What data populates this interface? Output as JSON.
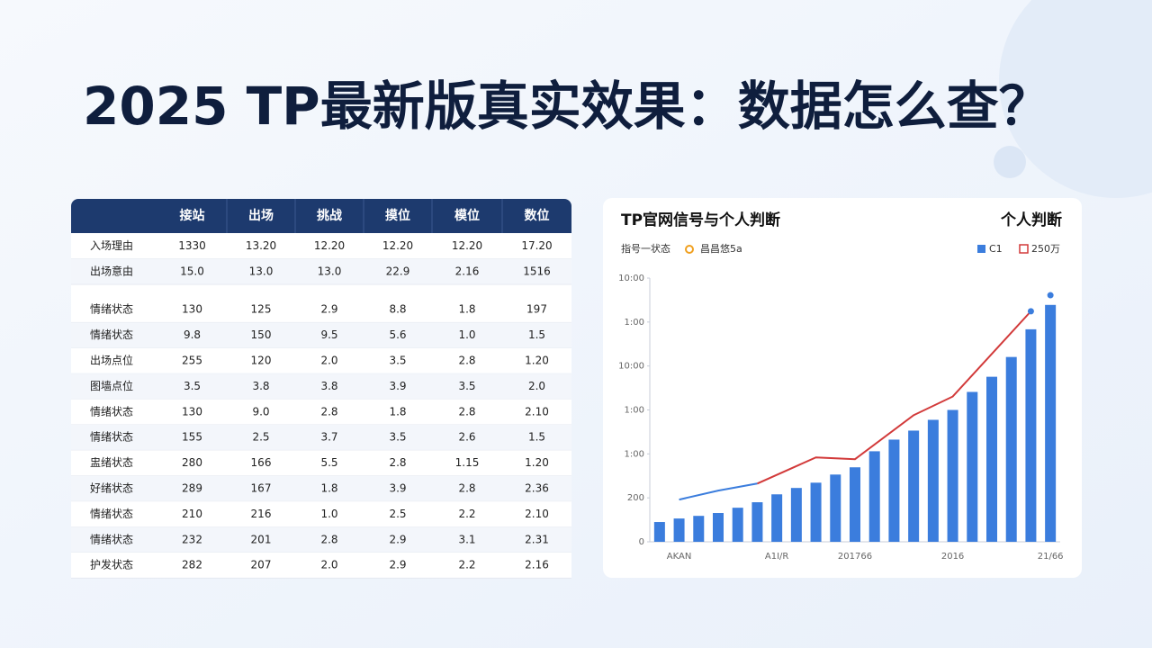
{
  "title": "2025 TP最新版真实效果：数据怎么查？",
  "table": {
    "columns": [
      "接站",
      "出场",
      "挑战",
      "摸位",
      "模位",
      "数位"
    ],
    "rows": [
      [
        "入场理由",
        "1330",
        "13.20",
        "12.20",
        "12.20",
        "12.20",
        "17.20"
      ],
      [
        "出场意由",
        "15.0",
        "13.0",
        "13.0",
        "22.9",
        "2.16",
        "1516"
      ],
      [
        "情绪状态",
        "130",
        "125",
        "2.9",
        "8.8",
        "1.8",
        "197"
      ],
      [
        "情绪状态",
        "9.8",
        "150",
        "9.5",
        "5.6",
        "1.0",
        "1.5"
      ],
      [
        "出场点位",
        "255",
        "120",
        "2.0",
        "3.5",
        "2.8",
        "1.20"
      ],
      [
        "图墙点位",
        "3.5",
        "3.8",
        "3.8",
        "3.9",
        "3.5",
        "2.0"
      ],
      [
        "情绪状态",
        "130",
        "9.0",
        "2.8",
        "1.8",
        "2.8",
        "2.10"
      ],
      [
        "情绪状态",
        "155",
        "2.5",
        "3.7",
        "3.5",
        "2.6",
        "1.5"
      ],
      [
        "盅绪状态",
        "280",
        "166",
        "5.5",
        "2.8",
        "1.15",
        "1.20"
      ],
      [
        "好绪状态",
        "289",
        "167",
        "1.8",
        "3.9",
        "2.8",
        "2.36"
      ],
      [
        "情绪状态",
        "210",
        "216",
        "1.0",
        "2.5",
        "2.2",
        "2.10"
      ],
      [
        "情绪状态",
        "232",
        "201",
        "2.8",
        "2.9",
        "3.1",
        "2.31"
      ],
      [
        "护发状态",
        "282",
        "207",
        "2.0",
        "2.9",
        "2.2",
        "2.16"
      ]
    ]
  },
  "chart_data": {
    "type": "bar",
    "title": "TP官网信号与个人判断",
    "right_label": "个人判断",
    "annotations": [
      "指号一状态",
      "昌昌悠5a"
    ],
    "categories": [
      null,
      "AKAN",
      null,
      null,
      null,
      null,
      "A1I/R",
      null,
      null,
      null,
      "201766",
      null,
      null,
      null,
      null,
      "2016",
      null,
      null,
      null,
      null,
      "21/66"
    ],
    "series": [
      {
        "name": "C1",
        "type": "bar",
        "color": "#3b7ddd",
        "values": [
          90,
          106,
          118,
          131,
          155,
          180,
          216,
          245,
          269,
          306,
          339,
          412,
          465,
          506,
          555,
          600,
          682,
          751,
          841,
          967,
          1078
        ]
      },
      {
        "name": "250万",
        "type": "line",
        "color": "#d23a3a",
        "values": [
          null,
          null,
          null,
          null,
          null,
          265,
          null,
          null,
          384,
          null,
          376,
          null,
          null,
          576,
          null,
          661,
          null,
          null,
          null,
          1049,
          null
        ]
      },
      {
        "type": "line",
        "color": "#3b7ddd",
        "values": [
          null,
          192,
          null,
          233,
          null,
          265,
          null,
          null,
          null,
          null,
          null,
          null,
          null,
          null,
          null,
          null,
          null,
          null,
          null,
          null,
          null
        ]
      },
      {
        "type": "scatter",
        "color": "#3b7ddd",
        "values": [
          null,
          null,
          null,
          null,
          null,
          null,
          null,
          null,
          null,
          null,
          null,
          null,
          null,
          null,
          null,
          null,
          null,
          null,
          null,
          1049,
          1122
        ]
      }
    ],
    "ylim": [
      0,
      1200
    ],
    "yticks": [
      0,
      200,
      {
        "value": 400,
        "label": "1:00"
      },
      {
        "value": 600,
        "label": "1:00"
      },
      {
        "value": 800,
        "label": "10:00"
      },
      {
        "value": 1000,
        "label": "1:00"
      },
      {
        "value": 1200,
        "label": "10:00"
      }
    ],
    "grid": false
  }
}
